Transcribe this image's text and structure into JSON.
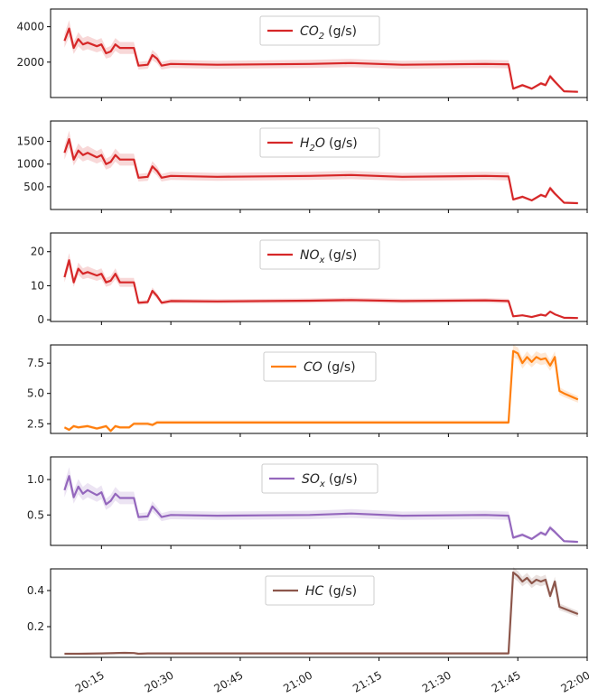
{
  "x_ticks": [
    "20:15",
    "20:30",
    "20:45",
    "21:00",
    "21:15",
    "21:30",
    "21:45",
    "22:00"
  ],
  "chart_data": [
    {
      "type": "line",
      "legend": {
        "sym": "CO",
        "sub": "2",
        "unit": "(g/s)"
      },
      "color": "#d62728",
      "ylim": [
        0,
        5000
      ],
      "yticks": [
        2000,
        4000
      ],
      "yticklabels": [
        "2000",
        "4000"
      ],
      "x": [
        "20:07",
        "20:08",
        "20:09",
        "20:10",
        "20:11",
        "20:12",
        "20:14",
        "20:15",
        "20:16",
        "20:17",
        "20:18",
        "20:19",
        "20:22",
        "20:23",
        "20:25",
        "20:26",
        "20:27",
        "20:28",
        "20:30",
        "20:40",
        "21:00",
        "21:09",
        "21:20",
        "21:38",
        "21:43",
        "21:44",
        "21:46",
        "21:48",
        "21:50",
        "21:51",
        "21:52",
        "21:53",
        "21:55",
        "21:58"
      ],
      "y": [
        3200,
        3900,
        2800,
        3300,
        3000,
        3100,
        2900,
        3000,
        2500,
        2600,
        3000,
        2800,
        2800,
        1800,
        1850,
        2400,
        2200,
        1800,
        1900,
        1850,
        1900,
        1950,
        1850,
        1900,
        1880,
        500,
        700,
        500,
        800,
        700,
        1200,
        900,
        350,
        320
      ]
    },
    {
      "type": "line",
      "legend": {
        "sym": "H",
        "sub": "2",
        "sym2": "O",
        "unit": "(g/s)"
      },
      "color": "#d62728",
      "ylim": [
        0,
        1950
      ],
      "yticks": [
        500,
        1000,
        1500
      ],
      "yticklabels": [
        "500",
        "1000",
        "1500"
      ],
      "x": [
        "20:07",
        "20:08",
        "20:09",
        "20:10",
        "20:11",
        "20:12",
        "20:14",
        "20:15",
        "20:16",
        "20:17",
        "20:18",
        "20:19",
        "20:22",
        "20:23",
        "20:25",
        "20:26",
        "20:27",
        "20:28",
        "20:30",
        "20:40",
        "21:00",
        "21:09",
        "21:20",
        "21:38",
        "21:43",
        "21:44",
        "21:46",
        "21:48",
        "21:50",
        "21:51",
        "21:52",
        "21:53",
        "21:55",
        "21:58"
      ],
      "y": [
        1250,
        1550,
        1100,
        1300,
        1200,
        1250,
        1150,
        1200,
        1000,
        1050,
        1200,
        1100,
        1100,
        700,
        720,
        950,
        850,
        700,
        740,
        720,
        740,
        760,
        720,
        740,
        730,
        220,
        280,
        200,
        320,
        280,
        470,
        350,
        150,
        140
      ]
    },
    {
      "type": "line",
      "legend": {
        "sym": "NO",
        "sub": "x",
        "unit": "(g/s)"
      },
      "color": "#d62728",
      "ylim": [
        -0.5,
        25.5
      ],
      "yticks": [
        0,
        10,
        20
      ],
      "yticklabels": [
        "0",
        "10",
        "20"
      ],
      "x": [
        "20:07",
        "20:08",
        "20:09",
        "20:10",
        "20:11",
        "20:12",
        "20:14",
        "20:15",
        "20:16",
        "20:17",
        "20:18",
        "20:19",
        "20:22",
        "20:23",
        "20:25",
        "20:26",
        "20:27",
        "20:28",
        "20:30",
        "20:40",
        "21:00",
        "21:09",
        "21:20",
        "21:38",
        "21:43",
        "21:44",
        "21:46",
        "21:48",
        "21:50",
        "21:51",
        "21:52",
        "21:53",
        "21:55",
        "21:58"
      ],
      "y": [
        12.5,
        17.5,
        11,
        15,
        13.5,
        14,
        13,
        13.5,
        11,
        11.5,
        13.5,
        11,
        11,
        5,
        5.2,
        8.5,
        7,
        5,
        5.5,
        5.4,
        5.6,
        5.8,
        5.5,
        5.7,
        5.5,
        1,
        1.3,
        0.8,
        1.5,
        1.2,
        2.4,
        1.6,
        0.6,
        0.5
      ]
    },
    {
      "type": "line",
      "legend": {
        "sym": "CO",
        "unit": "(g/s)"
      },
      "color": "#ff7f0e",
      "ylim": [
        1.7,
        9.0
      ],
      "yticks": [
        2.5,
        5.0,
        7.5
      ],
      "yticklabels": [
        "2.5",
        "5.0",
        "7.5"
      ],
      "x": [
        "20:07",
        "20:08",
        "20:09",
        "20:10",
        "20:12",
        "20:14",
        "20:15",
        "20:16",
        "20:17",
        "20:18",
        "20:19",
        "20:21",
        "20:22",
        "20:25",
        "20:26",
        "20:27",
        "20:28",
        "20:40",
        "21:00",
        "21:20",
        "21:43",
        "21:44",
        "21:45",
        "21:46",
        "21:47",
        "21:48",
        "21:49",
        "21:50",
        "21:51",
        "21:52",
        "21:53",
        "21:54",
        "21:55",
        "21:58"
      ],
      "y": [
        2.2,
        2.0,
        2.3,
        2.2,
        2.3,
        2.1,
        2.2,
        2.3,
        1.9,
        2.3,
        2.2,
        2.2,
        2.5,
        2.5,
        2.4,
        2.6,
        2.6,
        2.6,
        2.6,
        2.6,
        2.6,
        8.5,
        8.3,
        7.5,
        8.0,
        7.6,
        8.0,
        7.8,
        7.9,
        7.3,
        8.0,
        5.2,
        5.0,
        4.5
      ]
    },
    {
      "type": "line",
      "legend": {
        "sym": "SO",
        "sub": "x",
        "unit": "(g/s)"
      },
      "color": "#9467bd",
      "ylim": [
        0.07,
        1.32
      ],
      "yticks": [
        0.5,
        1.0
      ],
      "yticklabels": [
        "0.5",
        "1.0"
      ],
      "x": [
        "20:07",
        "20:08",
        "20:09",
        "20:10",
        "20:11",
        "20:12",
        "20:14",
        "20:15",
        "20:16",
        "20:17",
        "20:18",
        "20:19",
        "20:22",
        "20:23",
        "20:25",
        "20:26",
        "20:27",
        "20:28",
        "20:30",
        "20:40",
        "21:00",
        "21:09",
        "21:20",
        "21:38",
        "21:43",
        "21:44",
        "21:46",
        "21:48",
        "21:50",
        "21:51",
        "21:52",
        "21:53",
        "21:55",
        "21:58"
      ],
      "y": [
        0.85,
        1.05,
        0.75,
        0.9,
        0.8,
        0.85,
        0.78,
        0.82,
        0.65,
        0.7,
        0.8,
        0.74,
        0.74,
        0.47,
        0.48,
        0.62,
        0.55,
        0.47,
        0.5,
        0.49,
        0.5,
        0.52,
        0.49,
        0.5,
        0.49,
        0.18,
        0.22,
        0.16,
        0.25,
        0.22,
        0.32,
        0.26,
        0.13,
        0.12
      ]
    },
    {
      "type": "line",
      "legend": {
        "sym": "HC",
        "unit": "(g/s)"
      },
      "color": "#8c564b",
      "ylim": [
        0.03,
        0.52
      ],
      "yticks": [
        0.2,
        0.4
      ],
      "yticklabels": [
        "0.2",
        "0.4"
      ],
      "x": [
        "20:07",
        "20:10",
        "20:15",
        "20:20",
        "20:22",
        "20:23",
        "20:25",
        "20:30",
        "20:45",
        "21:00",
        "21:15",
        "21:30",
        "21:43",
        "21:44",
        "21:45",
        "21:46",
        "21:47",
        "21:48",
        "21:49",
        "21:50",
        "21:51",
        "21:52",
        "21:53",
        "21:54",
        "21:55",
        "21:58"
      ],
      "y": [
        0.05,
        0.05,
        0.052,
        0.055,
        0.054,
        0.05,
        0.052,
        0.052,
        0.052,
        0.052,
        0.052,
        0.052,
        0.052,
        0.5,
        0.48,
        0.45,
        0.47,
        0.44,
        0.46,
        0.45,
        0.46,
        0.37,
        0.45,
        0.31,
        0.3,
        0.27
      ]
    }
  ]
}
